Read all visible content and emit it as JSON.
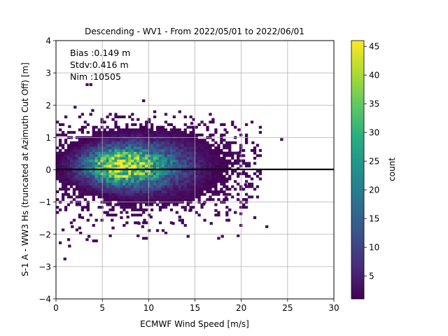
{
  "chart_data": {
    "type": "heatmap",
    "title": "Descending - WV1 - From 2022/05/01 to 2022/06/01",
    "xlabel": "ECMWF Wind Speed [m/s]",
    "ylabel": "S-1 A - WW3 Hs (truncated at Azimuth Cut Off) [m]",
    "xlim": [
      0,
      30
    ],
    "ylim": [
      -4,
      4
    ],
    "xticks": [
      "0",
      "5",
      "10",
      "15",
      "20",
      "25",
      "30"
    ],
    "yticks": [
      "4",
      "3",
      "2",
      "1",
      "0",
      "−1",
      "−2",
      "−3",
      "−4"
    ],
    "grid": true,
    "zero_line": 0,
    "annotations": [
      "Bias :0.149 m",
      "Stdv:0.416 m",
      "Nim :10505"
    ],
    "colorbar": {
      "label": "count",
      "colormap": "viridis",
      "range": [
        1,
        46
      ],
      "ticks": [
        "5",
        "10",
        "15",
        "20",
        "25",
        "30",
        "35",
        "40",
        "45"
      ]
    },
    "density_model": {
      "center_x": 6.8,
      "center_y": 0.12,
      "peak_count": 46,
      "bin_width_x": 0.3,
      "bin_width_y": 0.08
    },
    "outliers": [
      [
        3.2,
        2.6
      ],
      [
        3.6,
        2.6
      ],
      [
        9.3,
        2.1
      ],
      [
        1.9,
        1.9
      ],
      [
        3.8,
        1.8
      ],
      [
        5.4,
        1.6
      ],
      [
        7.2,
        1.6
      ],
      [
        13.8,
        1.6
      ],
      [
        14.5,
        1.4
      ],
      [
        1.3,
        1.3
      ],
      [
        18.1,
        1.2
      ],
      [
        19.6,
        1.2
      ],
      [
        24.2,
        0.9
      ],
      [
        21.1,
        0.8
      ],
      [
        19.7,
        0.5
      ],
      [
        20.1,
        -0.1
      ],
      [
        20.3,
        -0.5
      ],
      [
        19.5,
        -0.8
      ],
      [
        18.2,
        -0.9
      ],
      [
        15.8,
        -1.1
      ],
      [
        14.3,
        -1.3
      ],
      [
        17.1,
        -1.3
      ],
      [
        13.2,
        -1.5
      ],
      [
        19.8,
        -1.4
      ],
      [
        15.9,
        -1.6
      ],
      [
        9.4,
        -1.6
      ],
      [
        10.1,
        -1.5
      ],
      [
        7.6,
        -1.5
      ],
      [
        5.9,
        -1.6
      ],
      [
        8.8,
        -1.7
      ],
      [
        13.2,
        -1.6
      ],
      [
        16.6,
        -1.7
      ],
      [
        18.5,
        -1.6
      ],
      [
        22.6,
        -1.8
      ],
      [
        12.5,
        -1.7
      ],
      [
        9.2,
        -1.8
      ],
      [
        1.6,
        -1.8
      ],
      [
        2.4,
        -1.5
      ],
      [
        0.6,
        -1.9
      ],
      [
        2.1,
        -1.9
      ],
      [
        2.5,
        -2.0
      ],
      [
        3.4,
        -2.1
      ],
      [
        14.1,
        -2.1
      ],
      [
        17.8,
        -2.1
      ],
      [
        1.2,
        -2.2
      ],
      [
        3.2,
        -2.2
      ],
      [
        1.3,
        -2.4
      ],
      [
        0.3,
        -2.3
      ],
      [
        0.8,
        -2.8
      ]
    ]
  }
}
